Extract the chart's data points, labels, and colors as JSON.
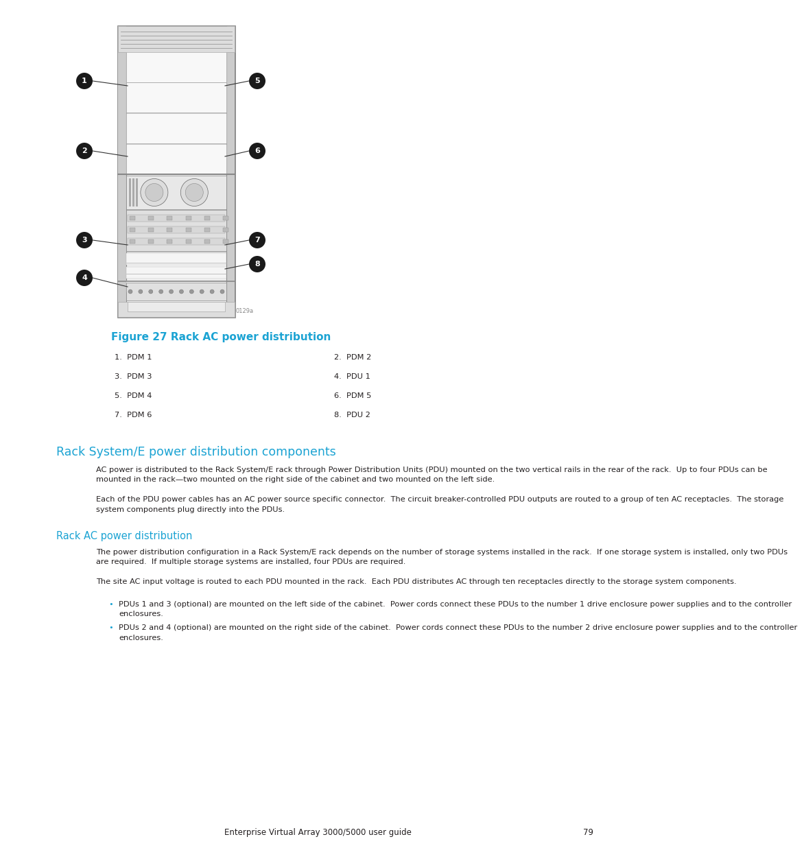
{
  "page_bg": "#ffffff",
  "figure_caption": "Figure 27 Rack AC power distribution",
  "figure_caption_color": "#1BA3D3",
  "legend_items_left": [
    "1.  PDM 1",
    "3.  PDM 3",
    "5.  PDM 4",
    "7.  PDM 6"
  ],
  "legend_items_right": [
    "2.  PDM 2",
    "4.  PDU 1",
    "6.  PDM 5",
    "8.  PDU 2"
  ],
  "section_title1": "Rack System/E power distribution components",
  "section_title1_color": "#1BA3D3",
  "section_title2": "Rack AC power distribution",
  "section_title2_color": "#1BA3D3",
  "para1": "AC power is distributed to the Rack System/E rack through Power Distribution Units (PDU) mounted on the two vertical rails in the rear of the rack.  Up to four PDUs can be mounted in the rack—two mounted on the right side of the cabinet and two mounted on the left side.",
  "para2": "Each of the PDU power cables has an AC power source specific connector.  The circuit breaker-controlled PDU outputs are routed to a group of ten AC receptacles.  The storage system components plug directly into the PDUs.",
  "para3": "The power distribution configuration in a Rack System/E rack depends on the number of storage systems installed in the rack.  If one storage system is installed, only two PDUs are required.  If multiple storage systems are installed, four PDUs are required.",
  "para4": "The site AC input voltage is routed to each PDU mounted in the rack.  Each PDU distributes AC through ten receptacles directly to the storage system components.",
  "bullet1": "PDUs 1 and 3 (optional) are mounted on the left side of the cabinet.  Power cords connect these PDUs to the number 1 drive enclosure power supplies and to the controller enclosures.",
  "bullet2": "PDUs 2 and 4 (optional) are mounted on the right side of the cabinet.  Power cords connect these PDUs to the number 2 drive enclosure power supplies and to the controller enclosures.",
  "footer_text": "Enterprise Virtual Array 3000/5000 user guide",
  "footer_page": "79",
  "text_color": "#231F20",
  "body_font_size": 8.2,
  "callout_color": "#1A1A1A",
  "rack_edge": "#555555",
  "rack_fill": "#EEEEEE",
  "shelf_color": "#777777"
}
